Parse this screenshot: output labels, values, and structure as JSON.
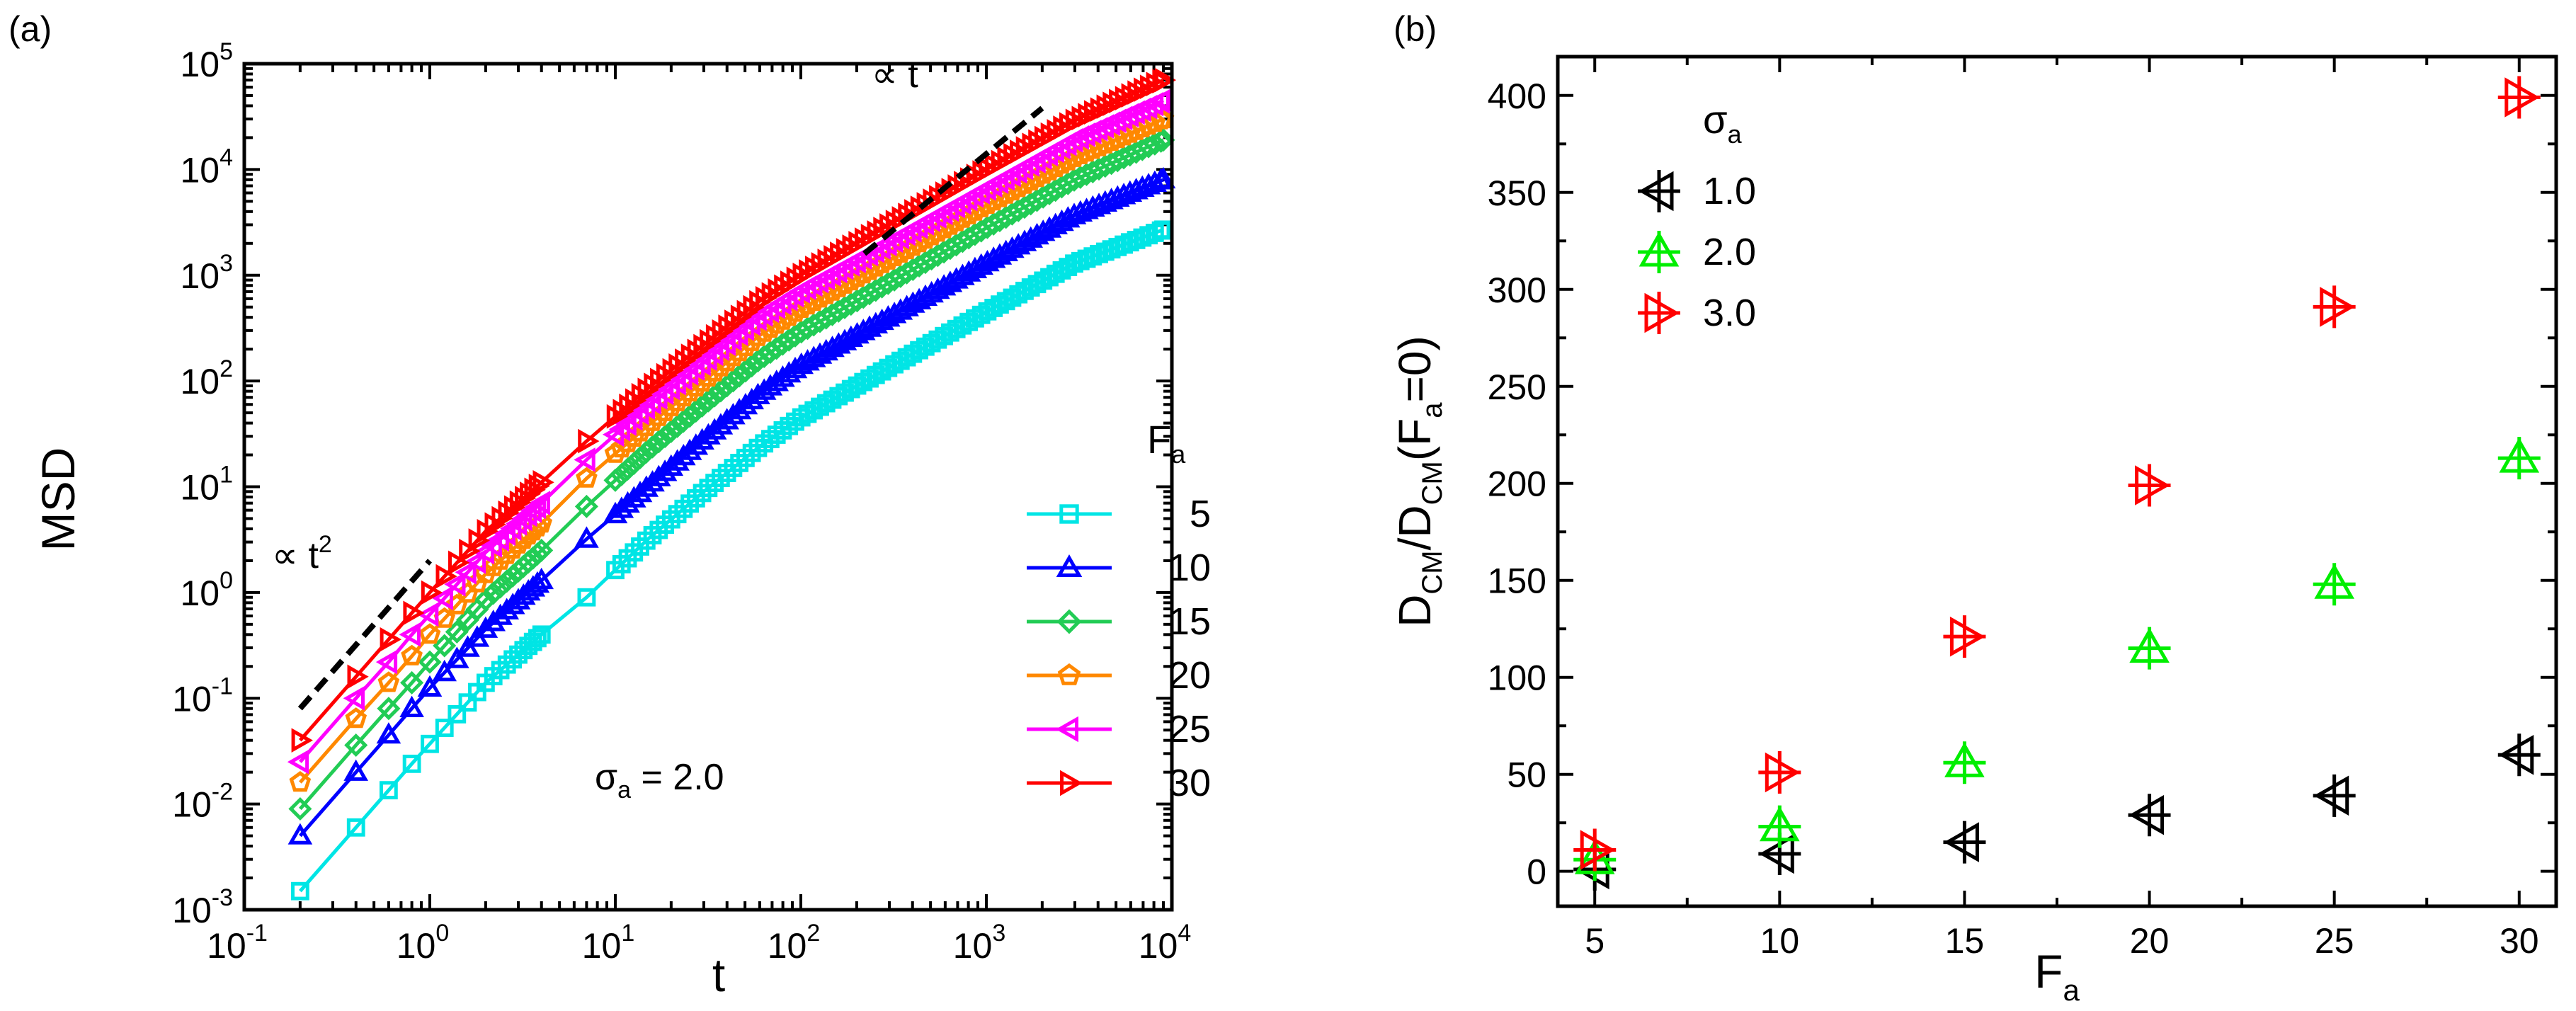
{
  "chart_data": [
    {
      "panel_label": "(a)",
      "type": "line",
      "x_scale": "log",
      "y_scale": "log",
      "xlabel": "t",
      "ylabel": "MSD",
      "xlim": [
        0.1,
        10000
      ],
      "ylim": [
        0.001,
        100000
      ],
      "x_ticks": [
        {
          "base": "10",
          "exp": "-1",
          "v": 0.1
        },
        {
          "base": "10",
          "exp": "0",
          "v": 1
        },
        {
          "base": "10",
          "exp": "1",
          "v": 10
        },
        {
          "base": "10",
          "exp": "2",
          "v": 100
        },
        {
          "base": "10",
          "exp": "3",
          "v": 1000
        },
        {
          "base": "10",
          "exp": "4",
          "v": 10000
        }
      ],
      "y_ticks": [
        {
          "base": "10",
          "exp": "-3",
          "v": 0.001
        },
        {
          "base": "10",
          "exp": "-2",
          "v": 0.01
        },
        {
          "base": "10",
          "exp": "-1",
          "v": 0.1
        },
        {
          "base": "10",
          "exp": "0",
          "v": 1
        },
        {
          "base": "10",
          "exp": "1",
          "v": 10
        },
        {
          "base": "10",
          "exp": "2",
          "v": 100
        },
        {
          "base": "10",
          "exp": "3",
          "v": 1000
        },
        {
          "base": "10",
          "exp": "4",
          "v": 10000
        },
        {
          "base": "10",
          "exp": "5",
          "v": 100000
        }
      ],
      "legend": {
        "title": "F",
        "title_sub": "a",
        "position": "right"
      },
      "annotation": {
        "symbol": "σ",
        "sub": "a",
        "text": " = 2.0"
      },
      "guides": [
        {
          "label": "∝ t",
          "sup": "2",
          "x": [
            0.2,
            1.0
          ],
          "y": [
            0.08,
            2.0
          ]
        },
        {
          "label": "∝ t",
          "sup": "",
          "x": [
            220,
            2000
          ],
          "y": [
            1600,
            38000
          ]
        }
      ],
      "series": [
        {
          "name": "5",
          "color": "#00e5e5",
          "marker": "square",
          "x": [
            0.2,
            0.4,
            0.6,
            0.8,
            1,
            2,
            4,
            7,
            15,
            30,
            60,
            100,
            300,
            1000,
            3000,
            9000
          ],
          "y": [
            0.0015,
            0.006,
            0.0135,
            0.024,
            0.037,
            0.14,
            0.4,
            0.9,
            3.2,
            9,
            24,
            45,
            135,
            450,
            1300,
            2700
          ]
        },
        {
          "name": "10",
          "color": "#0000ff",
          "marker": "triangle-up",
          "x": [
            0.2,
            0.4,
            0.6,
            0.8,
            1,
            2,
            4,
            7,
            15,
            30,
            60,
            100,
            300,
            1000,
            3000,
            9000
          ],
          "y": [
            0.005,
            0.02,
            0.045,
            0.08,
            0.125,
            0.45,
            1.3,
            3.2,
            10,
            28,
            75,
            140,
            400,
            1300,
            3700,
            8000
          ]
        },
        {
          "name": "15",
          "color": "#22cc55",
          "marker": "diamond",
          "x": [
            0.2,
            0.4,
            0.6,
            0.8,
            1,
            2,
            4,
            7,
            15,
            30,
            60,
            100,
            300,
            1000,
            3000,
            9000
          ],
          "y": [
            0.009,
            0.036,
            0.08,
            0.14,
            0.22,
            0.85,
            2.5,
            6.5,
            22,
            60,
            160,
            290,
            850,
            2800,
            8000,
            19000
          ]
        },
        {
          "name": "20",
          "color": "#ff8800",
          "marker": "pentagon",
          "x": [
            0.2,
            0.4,
            0.6,
            0.8,
            1,
            2,
            4,
            7,
            15,
            30,
            60,
            100,
            300,
            1000,
            3000,
            9000
          ],
          "y": [
            0.016,
            0.064,
            0.14,
            0.25,
            0.4,
            1.5,
            4.5,
            12,
            38,
            100,
            270,
            480,
            1400,
            4600,
            13000,
            30000
          ]
        },
        {
          "name": "25",
          "color": "#ff00ff",
          "marker": "triangle-left",
          "x": [
            0.2,
            0.4,
            0.6,
            0.8,
            1,
            2,
            4,
            7,
            15,
            30,
            60,
            100,
            300,
            1000,
            3000,
            9000
          ],
          "y": [
            0.025,
            0.1,
            0.22,
            0.4,
            0.62,
            2.4,
            7,
            18,
            58,
            150,
            400,
            700,
            2000,
            6500,
            19000,
            45000
          ]
        },
        {
          "name": "30",
          "color": "#ff0000",
          "marker": "triangle-right",
          "x": [
            0.2,
            0.4,
            0.6,
            0.8,
            1,
            2,
            4,
            7,
            15,
            30,
            60,
            100,
            300,
            1000,
            3000,
            9000
          ],
          "y": [
            0.04,
            0.16,
            0.36,
            0.64,
            1,
            3.8,
            11,
            27,
            85,
            220,
            570,
            1000,
            3000,
            10000,
            29000,
            70000
          ]
        }
      ]
    },
    {
      "panel_label": "(b)",
      "type": "scatter",
      "xlabel": {
        "base": "F",
        "sub": "a"
      },
      "ylabel": {
        "p1": "D",
        "s1": "CM",
        "p2": "/D",
        "s2": "CM",
        "p3": "(F",
        "s3": "a",
        "p4": "=0)"
      },
      "xlim": [
        4,
        31
      ],
      "ylim": [
        -18,
        420
      ],
      "x_ticks": [
        5,
        10,
        15,
        20,
        25,
        30
      ],
      "y_ticks": [
        0,
        50,
        100,
        150,
        200,
        250,
        300,
        350,
        400
      ],
      "legend": {
        "title": "σ",
        "title_sub": "a",
        "position": "top-left"
      },
      "series": [
        {
          "name": "1.0",
          "color": "#000000",
          "marker": "triangle-left-cross",
          "x": [
            5,
            10,
            15,
            20,
            25,
            30
          ],
          "y": [
            1,
            9,
            15,
            29,
            39,
            60
          ]
        },
        {
          "name": "2.0",
          "color": "#00ee00",
          "marker": "triangle-up-cross",
          "x": [
            5,
            10,
            15,
            20,
            25,
            30
          ],
          "y": [
            6,
            23,
            56,
            115,
            148,
            213
          ]
        },
        {
          "name": "3.0",
          "color": "#ff0000",
          "marker": "triangle-right-cross",
          "x": [
            5,
            10,
            15,
            20,
            25,
            30
          ],
          "y": [
            11,
            51,
            121,
            199,
            291,
            399
          ]
        }
      ]
    }
  ]
}
